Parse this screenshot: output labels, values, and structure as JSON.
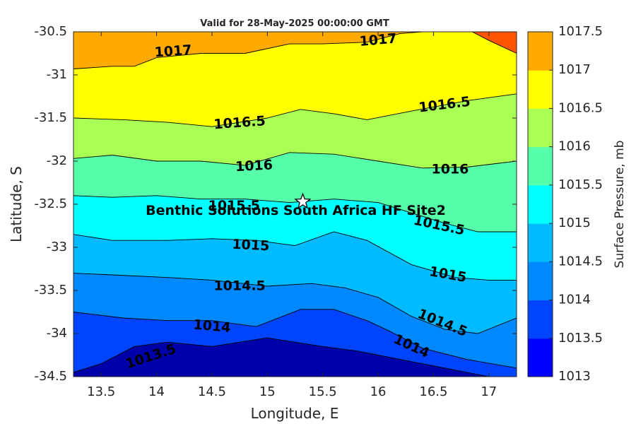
{
  "chart_data": {
    "type": "contour",
    "title": "Valid for 28-May-2025 00:00:00 GMT",
    "xlabel": "Longitude, E",
    "ylabel": "Latitude, S",
    "xlim": [
      13.25,
      17.25
    ],
    "ylim": [
      -34.5,
      -30.5
    ],
    "x_ticks": [
      13.5,
      14,
      14.5,
      15,
      15.5,
      16,
      16.5,
      17
    ],
    "x_tick_labels": [
      "13.5",
      "14",
      "14.5",
      "15",
      "15.5",
      "16",
      "16.5",
      "17"
    ],
    "y_ticks": [
      -30.5,
      -31,
      -31.5,
      -32,
      -32.5,
      -33,
      -33.5,
      -34,
      -34.5
    ],
    "y_tick_labels": [
      "-30.5",
      "-31",
      "-31.5",
      "-32",
      "-32.5",
      "-33",
      "-33.5",
      "-34",
      "-34.5"
    ],
    "colorbar": {
      "label": "Surface Pressure, mb",
      "levels": [
        1013,
        1013.5,
        1014,
        1014.5,
        1015,
        1015.5,
        1016,
        1016.5,
        1017,
        1017.5
      ],
      "tick_labels": [
        "1013",
        "1013.5",
        "1014",
        "1014.5",
        "1015",
        "1015.5",
        "1016",
        "1016.5",
        "1017",
        "1017.5"
      ],
      "colors": [
        "#0000aa",
        "#0000ff",
        "#0044ff",
        "#0088ff",
        "#00bbff",
        "#00ffff",
        "#55ffaa",
        "#aaff55",
        "#ffff00",
        "#ffaa00",
        "#ff5500"
      ]
    },
    "contour_lines": [
      {
        "level": 1013.5,
        "label": "1013.5",
        "points": [
          [
            13.25,
            -34.45
          ],
          [
            13.5,
            -34.35
          ],
          [
            13.8,
            -34.15
          ],
          [
            14.1,
            -34.1
          ],
          [
            14.5,
            -34.15
          ],
          [
            15.0,
            -34.05
          ],
          [
            15.5,
            -34.15
          ],
          [
            15.8,
            -34.2
          ],
          [
            16.0,
            -34.25
          ],
          [
            16.4,
            -34.35
          ],
          [
            16.8,
            -34.45
          ],
          [
            17.0,
            -34.5
          ]
        ]
      },
      {
        "level": 1014,
        "label": "1014",
        "points": [
          [
            13.25,
            -33.75
          ],
          [
            13.7,
            -33.82
          ],
          [
            14.1,
            -33.85
          ],
          [
            14.5,
            -33.85
          ],
          [
            14.9,
            -33.92
          ],
          [
            15.3,
            -33.72
          ],
          [
            15.6,
            -33.72
          ],
          [
            15.9,
            -33.85
          ],
          [
            16.1,
            -33.97
          ],
          [
            16.4,
            -34.17
          ],
          [
            16.8,
            -34.3
          ],
          [
            17.25,
            -34.4
          ]
        ]
      },
      {
        "level": 1014.5,
        "label": "1014.5",
        "points": [
          [
            13.25,
            -33.3
          ],
          [
            13.6,
            -33.32
          ],
          [
            14.1,
            -33.35
          ],
          [
            14.5,
            -33.38
          ],
          [
            15.0,
            -33.45
          ],
          [
            15.4,
            -33.42
          ],
          [
            15.7,
            -33.47
          ],
          [
            16.0,
            -33.58
          ],
          [
            16.3,
            -33.8
          ],
          [
            16.6,
            -33.95
          ],
          [
            16.9,
            -34.0
          ],
          [
            17.25,
            -33.82
          ]
        ]
      },
      {
        "level": 1015,
        "label": "1015",
        "points": [
          [
            13.25,
            -32.85
          ],
          [
            13.6,
            -32.92
          ],
          [
            14.1,
            -32.92
          ],
          [
            14.5,
            -32.9
          ],
          [
            14.9,
            -32.92
          ],
          [
            15.25,
            -32.98
          ],
          [
            15.6,
            -32.82
          ],
          [
            15.9,
            -32.92
          ],
          [
            16.3,
            -33.2
          ],
          [
            16.7,
            -33.35
          ],
          [
            17.0,
            -33.38
          ],
          [
            17.25,
            -33.38
          ]
        ]
      },
      {
        "level": 1015.5,
        "label": "1015.5",
        "points": [
          [
            13.25,
            -32.4
          ],
          [
            13.6,
            -32.42
          ],
          [
            14.0,
            -32.4
          ],
          [
            14.4,
            -32.44
          ],
          [
            14.8,
            -32.44
          ],
          [
            15.2,
            -32.48
          ],
          [
            15.6,
            -32.44
          ],
          [
            16.0,
            -32.48
          ],
          [
            16.3,
            -32.6
          ],
          [
            16.6,
            -32.72
          ],
          [
            16.9,
            -32.82
          ],
          [
            17.25,
            -32.82
          ]
        ]
      },
      {
        "level": 1016,
        "label": "1016",
        "points": [
          [
            13.25,
            -31.97
          ],
          [
            13.6,
            -31.93
          ],
          [
            14.0,
            -32.0
          ],
          [
            14.4,
            -32.0
          ],
          [
            14.8,
            -32.05
          ],
          [
            15.2,
            -31.9
          ],
          [
            15.6,
            -31.92
          ],
          [
            16.0,
            -32.0
          ],
          [
            16.4,
            -32.08
          ],
          [
            16.8,
            -32.07
          ],
          [
            17.25,
            -32.0
          ]
        ]
      },
      {
        "level": 1016.5,
        "label": "1016.5",
        "points": [
          [
            13.25,
            -31.5
          ],
          [
            13.7,
            -31.52
          ],
          [
            14.1,
            -31.55
          ],
          [
            14.5,
            -31.6
          ],
          [
            15.0,
            -31.5
          ],
          [
            15.3,
            -31.4
          ],
          [
            15.6,
            -31.45
          ],
          [
            15.9,
            -31.52
          ],
          [
            16.3,
            -31.42
          ],
          [
            16.8,
            -31.3
          ],
          [
            17.25,
            -31.22
          ]
        ]
      },
      {
        "level": 1017,
        "label": "1017",
        "points": [
          [
            13.25,
            -30.93
          ],
          [
            13.6,
            -30.9
          ],
          [
            13.8,
            -30.9
          ],
          [
            14.0,
            -30.8
          ],
          [
            14.4,
            -30.75
          ],
          [
            14.8,
            -30.75
          ],
          [
            15.2,
            -30.64
          ],
          [
            15.5,
            -30.64
          ],
          [
            15.9,
            -30.62
          ],
          [
            16.2,
            -30.52
          ],
          [
            16.4,
            -30.5
          ]
        ]
      },
      {
        "level": 1017.5,
        "label": "",
        "points": [
          [
            16.85,
            -30.5
          ],
          [
            17.0,
            -30.6
          ],
          [
            17.25,
            -30.75
          ]
        ]
      }
    ],
    "contour_labels": [
      {
        "text": "1017",
        "x": 14.15,
        "y": -30.73,
        "angle": -4
      },
      {
        "text": "1017",
        "x": 16.0,
        "y": -30.6,
        "angle": -5
      },
      {
        "text": "1016.5",
        "x": 14.75,
        "y": -31.56,
        "angle": -4
      },
      {
        "text": "1016.5",
        "x": 16.6,
        "y": -31.35,
        "angle": -7
      },
      {
        "text": "1016",
        "x": 14.88,
        "y": -32.06,
        "angle": -3
      },
      {
        "text": "1016",
        "x": 16.65,
        "y": -32.1,
        "angle": 0
      },
      {
        "text": "1015.5",
        "x": 14.7,
        "y": -32.52,
        "angle": 0
      },
      {
        "text": "1015.5",
        "x": 16.55,
        "y": -32.75,
        "angle": 12
      },
      {
        "text": "1015",
        "x": 14.85,
        "y": -32.98,
        "angle": 3
      },
      {
        "text": "1015",
        "x": 16.63,
        "y": -33.32,
        "angle": 10
      },
      {
        "text": "1014.5",
        "x": 14.75,
        "y": -33.45,
        "angle": 0
      },
      {
        "text": "1014.5",
        "x": 16.58,
        "y": -33.88,
        "angle": 22
      },
      {
        "text": "1014",
        "x": 14.5,
        "y": -33.92,
        "angle": 5
      },
      {
        "text": "1014",
        "x": 16.3,
        "y": -34.15,
        "angle": 25
      },
      {
        "text": "1013.5",
        "x": 13.95,
        "y": -34.27,
        "angle": -18
      }
    ],
    "marker": {
      "label": "Benthic Solutions South Africa HF Site2",
      "x": 15.32,
      "y": -32.47,
      "symbol": "star"
    }
  }
}
